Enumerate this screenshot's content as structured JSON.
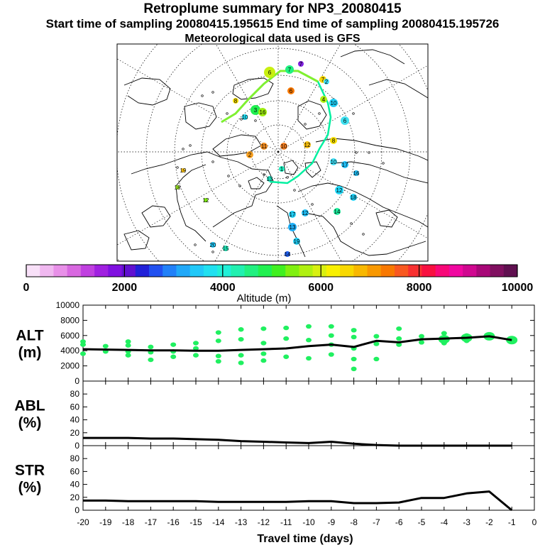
{
  "header": {
    "title": "Retroplume summary for NP3_20080415",
    "sampling_line": "Start time of sampling 20080415.195615     End time of sampling 20080415.195726",
    "met_line": "Meteorological data used is GFS"
  },
  "colorbar": {
    "label": "Altitude (m)",
    "ticks": [
      "0",
      "2000",
      "4000",
      "6000",
      "8000",
      "10000"
    ],
    "colors": [
      "#f8e0f8",
      "#f0b8f0",
      "#e890e8",
      "#d868e0",
      "#c040e0",
      "#a020e0",
      "#8010e0",
      "#6010d0",
      "#2020d8",
      "#2050f0",
      "#2080f8",
      "#20a8f8",
      "#20c8f8",
      "#20e0f0",
      "#20f0d8",
      "#20f0b0",
      "#20f080",
      "#20f050",
      "#40f020",
      "#80f010",
      "#b0f010",
      "#d8f010",
      "#f8f000",
      "#f8d800",
      "#f8b800",
      "#f89800",
      "#f87800",
      "#f85820",
      "#f83030",
      "#f81040",
      "#f80878",
      "#f008a0",
      "#d00890",
      "#a80878",
      "#801060",
      "#601050"
    ]
  },
  "map": {
    "trajectory_labels": [
      {
        "t": "1",
        "c": "#20f0c0",
        "r": 4
      },
      {
        "t": "2",
        "c": "#f8a020",
        "r": 5
      },
      {
        "t": "6",
        "c": "#c8f010",
        "r": 8
      },
      {
        "t": "7",
        "c": "#20f080",
        "r": 6
      },
      {
        "t": "7",
        "c": "#8020e0",
        "r": 4
      },
      {
        "t": "7",
        "c": "#f8d800",
        "r": 5
      },
      {
        "t": "3",
        "c": "#20f050",
        "r": 7
      },
      {
        "t": "6",
        "c": "#f87800",
        "r": 5
      },
      {
        "t": "2",
        "c": "#40e0f8",
        "r": 4
      },
      {
        "t": "10",
        "c": "#20d0f8",
        "r": 6
      },
      {
        "t": "16",
        "c": "#a0f010",
        "r": 6
      },
      {
        "t": "4",
        "c": "#b0f010",
        "r": 5
      },
      {
        "t": "6",
        "c": "#40e0f0",
        "r": 6
      },
      {
        "t": "8",
        "c": "#f8e000",
        "r": 5
      },
      {
        "t": "11",
        "c": "#f89020",
        "r": 5
      },
      {
        "t": "10",
        "c": "#f88020",
        "r": 5
      },
      {
        "t": "12",
        "c": "#f8c010",
        "r": 5
      },
      {
        "t": "10",
        "c": "#40e0f8",
        "r": 5
      },
      {
        "t": "17",
        "c": "#20c0f8",
        "r": 5
      },
      {
        "t": "16",
        "c": "#20c0f8",
        "r": 4
      },
      {
        "t": "12",
        "c": "#20d8f8",
        "r": 6
      },
      {
        "t": "18",
        "c": "#20d0f8",
        "r": 5
      },
      {
        "t": "14",
        "c": "#20f0a0",
        "r": 5
      },
      {
        "t": "12",
        "c": "#20c0f8",
        "r": 5
      },
      {
        "t": "17",
        "c": "#20d0f8",
        "r": 5
      },
      {
        "t": "13",
        "c": "#20b0f8",
        "r": 6
      },
      {
        "t": "19",
        "c": "#20d0f8",
        "r": 5
      },
      {
        "t": "20",
        "c": "#20c8f8",
        "r": 4
      },
      {
        "t": "14",
        "c": "#2060f0",
        "r": 4
      },
      {
        "t": "15",
        "c": "#20f0c0",
        "r": 4
      },
      {
        "t": "18",
        "c": "#a0f020",
        "r": 3
      },
      {
        "t": "19",
        "c": "#f8c010",
        "r": 3
      },
      {
        "t": "12",
        "c": "#80f010",
        "r": 3
      },
      {
        "t": "8",
        "c": "#f8e000",
        "r": 4
      },
      {
        "t": "10",
        "c": "#20e0f8",
        "r": 4
      },
      {
        "t": "13",
        "c": "#20e0c0",
        "r": 4
      }
    ]
  },
  "chart_data": [
    {
      "type": "line",
      "ylabel": "ALT\n(m)",
      "ylabel_lines": [
        "ALT",
        "(m)"
      ],
      "ylim": [
        0,
        10000
      ],
      "yticks": [
        "0",
        "2000",
        "4000",
        "6000",
        "8000",
        "10000"
      ],
      "x": [
        -20,
        -19,
        -18,
        -17,
        -16,
        -15,
        -14,
        -13,
        -12,
        -11,
        -10,
        -9,
        -8,
        -7,
        -6,
        -5,
        -4,
        -3,
        -2,
        -1
      ],
      "values": [
        4200,
        4150,
        4100,
        4050,
        4050,
        4000,
        4000,
        4100,
        4200,
        4300,
        4600,
        4800,
        4500,
        5300,
        5100,
        5500,
        5600,
        5700,
        5900,
        5400
      ],
      "scatter": [
        [
          -20,
          3600
        ],
        [
          -20,
          4800
        ],
        [
          -20,
          5200
        ],
        [
          -19,
          3900
        ],
        [
          -19,
          4600
        ],
        [
          -18,
          3400
        ],
        [
          -18,
          3900
        ],
        [
          -18,
          4700
        ],
        [
          -18,
          5200
        ],
        [
          -17,
          2800
        ],
        [
          -17,
          3800
        ],
        [
          -17,
          4500
        ],
        [
          -16,
          3200
        ],
        [
          -16,
          3900
        ],
        [
          -16,
          4800
        ],
        [
          -15,
          3400
        ],
        [
          -15,
          4300
        ],
        [
          -15,
          5000
        ],
        [
          -14,
          2600
        ],
        [
          -14,
          3300
        ],
        [
          -14,
          5300
        ],
        [
          -14,
          6400
        ],
        [
          -13,
          2400
        ],
        [
          -13,
          3400
        ],
        [
          -13,
          5500
        ],
        [
          -13,
          6800
        ],
        [
          -12,
          2700
        ],
        [
          -12,
          3600
        ],
        [
          -12,
          5000
        ],
        [
          -12,
          6900
        ],
        [
          -11,
          3200
        ],
        [
          -11,
          5600
        ],
        [
          -11,
          7000
        ],
        [
          -10,
          3000
        ],
        [
          -10,
          5400
        ],
        [
          -10,
          7200
        ],
        [
          -9,
          3500
        ],
        [
          -9,
          4800
        ],
        [
          -9,
          6000
        ],
        [
          -9,
          7200
        ],
        [
          -8,
          1600
        ],
        [
          -8,
          2900
        ],
        [
          -8,
          4300
        ],
        [
          -8,
          5800
        ],
        [
          -8,
          6700
        ],
        [
          -7,
          2900
        ],
        [
          -7,
          4900
        ],
        [
          -7,
          5900
        ],
        [
          -6,
          4800
        ],
        [
          -6,
          5600
        ],
        [
          -6,
          6900
        ],
        [
          -5,
          5100
        ],
        [
          -5,
          5900
        ],
        [
          -4,
          5000
        ],
        [
          -4,
          5600
        ],
        [
          -4,
          6300
        ],
        [
          -3,
          5300
        ],
        [
          -3,
          6000
        ],
        [
          -2,
          5700
        ],
        [
          -2,
          6100
        ],
        [
          -1,
          5300
        ],
        [
          -1,
          5600
        ]
      ],
      "scatter_color": "#20f060"
    },
    {
      "type": "line",
      "ylabel": "ABL\n(%)",
      "ylabel_lines": [
        "ABL",
        "(%)"
      ],
      "ylim": [
        0,
        100
      ],
      "yticks": [
        "0",
        "20",
        "40",
        "60",
        "80"
      ],
      "x": [
        -20,
        -19,
        -18,
        -17,
        -16,
        -15,
        -14,
        -13,
        -12,
        -11,
        -10,
        -9,
        -8,
        -7,
        -6,
        -5,
        -4,
        -3,
        -2,
        -1
      ],
      "values": [
        12,
        12,
        12,
        11,
        11,
        10,
        9,
        7,
        6,
        5,
        4,
        6,
        3,
        1,
        0,
        0,
        0,
        0,
        0,
        0
      ]
    },
    {
      "type": "line",
      "ylabel": "STR\n(%)",
      "ylabel_lines": [
        "STR",
        "(%)"
      ],
      "ylim": [
        0,
        100
      ],
      "yticks": [
        "0",
        "20",
        "40",
        "60",
        "80"
      ],
      "x": [
        -20,
        -19,
        -18,
        -17,
        -16,
        -15,
        -14,
        -13,
        -12,
        -11,
        -10,
        -9,
        -8,
        -7,
        -6,
        -5,
        -4,
        -3,
        -2,
        -1
      ],
      "values": [
        15,
        15,
        14,
        14,
        14,
        14,
        13,
        13,
        13,
        13,
        14,
        14,
        11,
        11,
        12,
        19,
        19,
        26,
        29,
        0
      ],
      "xlabel": "Travel time (days)",
      "xticks": [
        "-20",
        "-19",
        "-18",
        "-17",
        "-16",
        "-15",
        "-14",
        "-13",
        "-12",
        "-11",
        "-10",
        "-9",
        "-8",
        "-7",
        "-6",
        "-5",
        "-4",
        "-3",
        "-2",
        "-1",
        "0"
      ]
    }
  ]
}
